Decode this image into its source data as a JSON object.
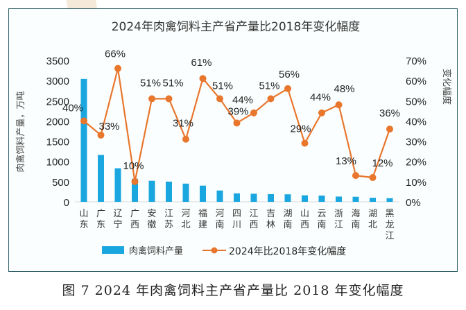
{
  "caption": "图 7   2024 年肉禽饲料主产省产量比 2018 年变化幅度",
  "chart_data": {
    "type": "bar+line",
    "title": "2024年肉禽饲料主产省产量比2018年变化幅度",
    "xlabel": "",
    "ylabel": "肉禽饲料产量，万吨",
    "y2label": "变化幅度",
    "categories": [
      "山东",
      "广东",
      "辽宁",
      "广西",
      "安徽",
      "江苏",
      "河北",
      "福建",
      "河南",
      "四川",
      "江西",
      "吉林",
      "湖南",
      "山西",
      "云南",
      "浙江",
      "海南",
      "湖北",
      "黑龙江"
    ],
    "series": [
      {
        "name": "肉禽饲料产量",
        "type": "bar",
        "axis": "left",
        "color": "#1aa7e0",
        "values": [
          3040,
          1160,
          830,
          570,
          520,
          500,
          450,
          400,
          280,
          210,
          200,
          190,
          185,
          160,
          155,
          130,
          125,
          100,
          90
        ]
      },
      {
        "name": "2024年比2018年变化幅度",
        "type": "line",
        "axis": "right",
        "color": "#e8762d",
        "values": [
          40,
          33,
          66,
          10,
          51,
          51,
          31,
          61,
          51,
          39,
          44,
          51,
          56,
          29,
          44,
          48,
          13,
          12,
          36
        ],
        "labels": [
          "40%",
          "33%",
          "66%",
          "10%",
          "51%",
          "51%",
          "31%",
          "61%",
          "51%",
          "39%",
          "44%",
          "51%",
          "56%",
          "29%",
          "44%",
          "48%",
          "13%",
          "12%",
          "36%"
        ]
      }
    ],
    "ylim": [
      0,
      3500
    ],
    "yticks": [
      "0",
      "500",
      "1000",
      "1500",
      "2000",
      "2500",
      "3000",
      "3500"
    ],
    "y2lim": [
      0,
      70
    ],
    "y2ticks": [
      "0%",
      "10%",
      "20%",
      "30%",
      "40%",
      "50%",
      "60%",
      "70%"
    ],
    "grid": false,
    "legend": "bottom",
    "legend_labels": [
      "肉禽饲料产量",
      "2024年比2018年变化幅度"
    ]
  }
}
